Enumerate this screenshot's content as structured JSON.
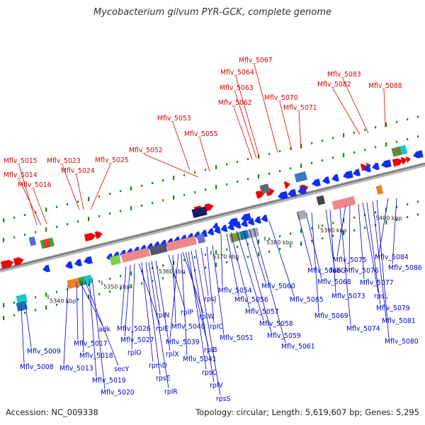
{
  "map": {
    "title": "Mycobacterium gilvum PYR-GCK, complete genome",
    "footer": {
      "accession": "Accession: NC_009338",
      "topology": "Topology: circular; Length: 5,619,607 bp; Genes: 5,295"
    },
    "colors": {
      "upper_label": "#e00000",
      "lower_label": "#0000cc",
      "forward_gene": "#ee0000",
      "reverse_gene": "#1030ee",
      "backbone": "#888888",
      "marker": "#1a8a1a"
    },
    "scale": [
      "5340 kbp",
      "5350 kbp",
      "5360 kbp",
      "5370 kbp",
      "5380 kbp",
      "5390 kbp",
      "5400 kbp"
    ],
    "upper_labels": [
      "Mflv_5015",
      "Mflv_5014",
      "Mflv_5016",
      "Mflv_5023",
      "Mflv_5024",
      "Mflv_5025",
      "Mflv_5052",
      "Mflv_5053",
      "Mflv_5055",
      "Mflv_5062",
      "Mflv_5063",
      "Mflv_5064",
      "Mflv_5067",
      "Mflv_5070",
      "Mflv_5071",
      "Mflv_5082",
      "Mflv_5083",
      "Mflv_5088"
    ],
    "lower_labels": [
      "Mflv_5009",
      "Mflv_5008",
      "Mflv_5013",
      "Mflv_5017",
      "adk",
      "Mflv_5018",
      "secY",
      "Mflv_5019",
      "Mflv_5020",
      "Mflv_5026",
      "rplE",
      "Mflv_5027",
      "rplO",
      "rpmD",
      "rpsE",
      "rplR",
      "rplN",
      "rplX",
      "rplP",
      "Mflv_5040",
      "Mflv_5039",
      "Mflv_5041",
      "rplB",
      "rpsC",
      "rplV",
      "rpsS",
      "rplW",
      "rpsJ",
      "rplC",
      "Mflv_5051",
      "Mflv_5054",
      "Mflv_5056",
      "Mflv_5057",
      "Mflv_5058",
      "Mflv_5059",
      "Mflv_5060",
      "Mflv_5061",
      "Mflv_5065",
      "Mflv_5066",
      "Mflv_5068",
      "Mflv_5069",
      "fabG",
      "Mflv_5073",
      "Mflv_5074",
      "Mflv_5075",
      "Mflv_5076",
      "Mflv_5077",
      "rpsL",
      "Mflv_5079",
      "Mflv_5081",
      "Mflv_5080",
      "Mflv_5084",
      "Mflv_5086"
    ]
  }
}
